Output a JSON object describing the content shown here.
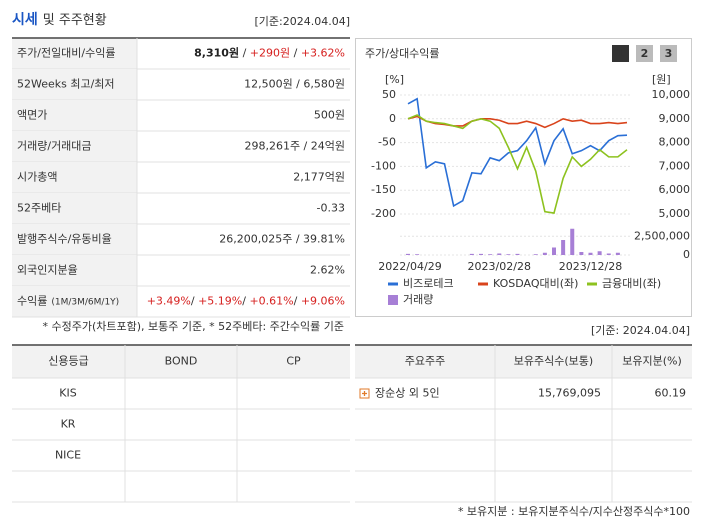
{
  "header": {
    "title_main": "시세",
    "title_sub": "및 주주현황",
    "date": "[기준:2024.04.04]"
  },
  "summary": {
    "rows": [
      {
        "label": "주가/전일대비/수익률",
        "value": [
          {
            "text": "8,310원",
            "style": "bold"
          },
          {
            "text": " / ",
            "style": "plain"
          },
          {
            "text": "+290원",
            "style": "up"
          },
          {
            "text": " / ",
            "style": "plain"
          },
          {
            "text": "+3.62%",
            "style": "up"
          }
        ]
      },
      {
        "label": "52Weeks 최고/최저",
        "value": [
          {
            "text": "12,500원 / 6,580원",
            "style": "plain"
          }
        ]
      },
      {
        "label": "액면가",
        "value": [
          {
            "text": "500원",
            "style": "plain"
          }
        ]
      },
      {
        "label": "거래량/거래대금",
        "value": [
          {
            "text": "298,261주 / 24억원",
            "style": "plain"
          }
        ]
      },
      {
        "label": "시가총액",
        "value": [
          {
            "text": "2,177억원",
            "style": "plain"
          }
        ]
      },
      {
        "label": "52주베타",
        "value": [
          {
            "text": "-0.33",
            "style": "plain"
          }
        ]
      },
      {
        "label": "발행주식수/유동비율",
        "value": [
          {
            "text": "26,200,025주 / 39.81%",
            "style": "plain"
          }
        ]
      },
      {
        "label": "외국인지분율",
        "value": [
          {
            "text": "2.62%",
            "style": "plain"
          }
        ]
      },
      {
        "label": "수익률",
        "label_small": "(1M/3M/6M/1Y)",
        "value": [
          {
            "text": "+3.49%",
            "style": "up"
          },
          {
            "text": "/ ",
            "style": "plain"
          },
          {
            "text": "+5.19%",
            "style": "up"
          },
          {
            "text": "/ ",
            "style": "plain"
          },
          {
            "text": "+0.61%",
            "style": "up"
          },
          {
            "text": "/ ",
            "style": "plain"
          },
          {
            "text": "+9.06%",
            "style": "up"
          }
        ]
      }
    ],
    "note": "* 수정주가(차트포함), 보통주 기준, * 52주베타: 주간수익률 기준"
  },
  "price_chart": {
    "type": "line",
    "title": "주가/상대수익률",
    "buttons": [
      "1",
      "2",
      "3"
    ],
    "active_button": 0,
    "ylabel": "[%]",
    "y2label": "[원]",
    "grid": true,
    "categories": [
      "2022/04/29",
      null,
      null,
      null,
      null,
      null,
      null,
      null,
      null,
      null,
      "2023/02/28",
      null,
      null,
      null,
      null,
      null,
      null,
      null,
      null,
      null,
      "2023/12/28",
      null,
      null,
      null,
      null
    ],
    "ylim": [
      -200,
      50
    ],
    "yticks": [
      50,
      0,
      -50,
      -100,
      -150,
      -200
    ],
    "y2lim": [
      5000,
      10000
    ],
    "y2ticks": [
      {
        "value": 10000,
        "label": "10,000"
      },
      {
        "value": 9000,
        "label": "9,000"
      },
      {
        "value": 8000,
        "label": "8,000"
      },
      {
        "value": 7000,
        "label": "7,000"
      },
      {
        "value": 6000,
        "label": "6,000"
      },
      {
        "value": 5000,
        "label": "5,000"
      }
    ],
    "y3lim": [
      0,
      4000000
    ],
    "y3ticks": [
      {
        "value": 2500000,
        "label": "2,500,000"
      },
      0
    ],
    "series": [
      {
        "name": "비즈로테크",
        "color": "#2a6fd6",
        "axis": "y2",
        "values": [
          9630,
          9840,
          6940,
          7190,
          7110,
          5340,
          5560,
          6730,
          6690,
          7360,
          7240,
          7570,
          7660,
          8080,
          8620,
          7110,
          8080,
          8580,
          7530,
          7660,
          7870,
          7660,
          8080,
          8290,
          8310
        ]
      },
      {
        "name": "KOSDAQ대비(좌)",
        "color": "#d9441c",
        "axis": "y",
        "values": [
          0,
          5,
          -5,
          -10,
          -12,
          -15,
          -15,
          -5,
          0,
          0,
          -3,
          -10,
          -10,
          -5,
          -10,
          -18,
          -10,
          0,
          -5,
          -3,
          -10,
          -10,
          -8,
          -10,
          -8
        ]
      },
      {
        "name": "금융대비(좌)",
        "color": "#8dc21f",
        "axis": "y",
        "values": [
          0,
          8,
          -5,
          -8,
          -10,
          -15,
          -20,
          -5,
          0,
          -5,
          -20,
          -60,
          -105,
          -60,
          -110,
          -195,
          -198,
          -125,
          -80,
          -100,
          -85,
          -65,
          -80,
          -80,
          -65
        ]
      },
      {
        "name": "거래량",
        "color": "#a77fd6",
        "axis": "y3",
        "type": "bar",
        "values": [
          150000,
          100000,
          0,
          0,
          0,
          0,
          0,
          150000,
          150000,
          100000,
          200000,
          100000,
          150000,
          0,
          100000,
          300000,
          1000000,
          2000000,
          3500000,
          400000,
          300000,
          500000,
          200000,
          300000,
          0
        ]
      }
    ]
  },
  "date2": "[기준: 2024.04.04]",
  "credit_table": {
    "columns": [
      "신용등급",
      "BOND",
      "CP"
    ],
    "rows": [
      "KIS",
      "KR",
      "NICE"
    ]
  },
  "holders_table": {
    "columns": [
      "주요주주",
      "보유주식수(보통)",
      "보유지분(%)"
    ],
    "rows": [
      [
        "장순상 외 5인",
        "15,769,095",
        "60.19"
      ]
    ],
    "note": "* 보유지분 : 보유지분주식수/지수산정주식수*100"
  }
}
